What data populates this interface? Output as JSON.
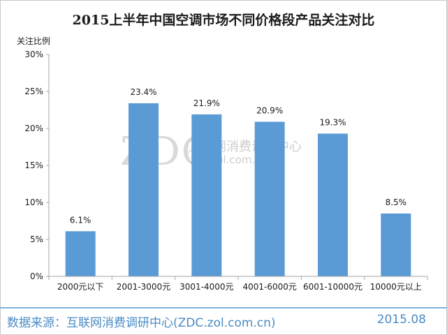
{
  "title": "2015上半年中国空调市场不同价格段产品关注对比",
  "watermark": {
    "logo": "ZDC",
    "name": "互联网消费调研中心",
    "url": "zdc.zol.com.cn"
  },
  "footer": {
    "source": "数据来源：互联网消费调研中心(ZDC.zol.com.cn)",
    "date": "2015.08"
  },
  "colors": {
    "bar": "#5b9bd5",
    "axis": "#a6a6a6",
    "grid": "#d9d9d9",
    "footer": "#4a8bc4"
  },
  "chart_data": {
    "type": "bar",
    "title": "2015上半年中国空调市场不同价格段产品关注对比",
    "ylabel": "关注比例",
    "xlabel": "",
    "categories": [
      "2000元以下",
      "2001-3000元",
      "3001-4000元",
      "4001-6000元",
      "6001-10000元",
      "10000元以上"
    ],
    "values": [
      6.1,
      23.4,
      21.9,
      20.9,
      19.3,
      8.5
    ],
    "value_labels": [
      "6.1%",
      "23.4%",
      "21.9%",
      "20.9%",
      "19.3%",
      "8.5%"
    ],
    "ylim": [
      0,
      30
    ],
    "yticks": [
      0,
      5,
      10,
      15,
      20,
      25,
      30
    ],
    "ytick_labels": [
      "0%",
      "5%",
      "10%",
      "15%",
      "20%",
      "25%",
      "30%"
    ],
    "grid": false
  }
}
